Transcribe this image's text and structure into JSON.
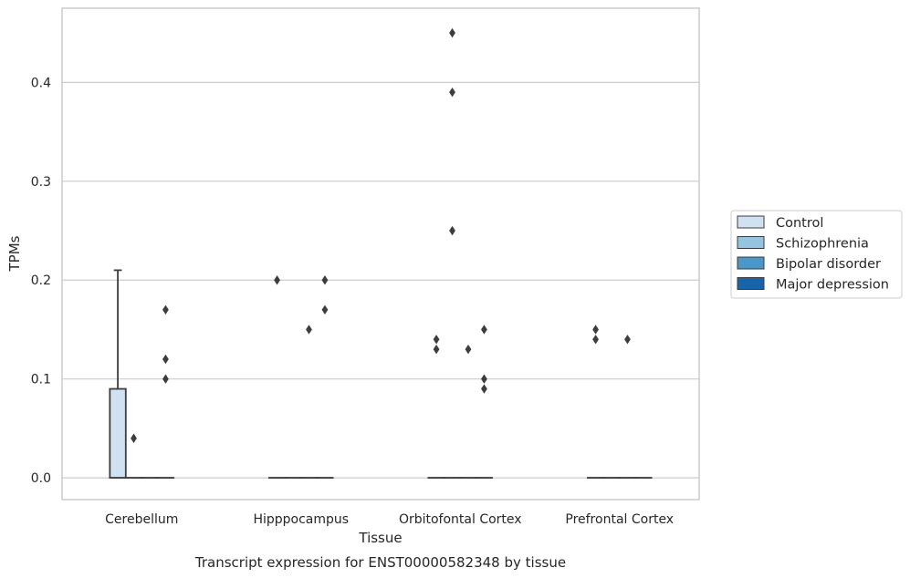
{
  "chart_data": {
    "type": "box",
    "xlabel": "Tissue",
    "ylabel": "TPMs",
    "caption": "Transcript expression for ENST00000582348 by tissue",
    "ylim": [
      -0.022,
      0.475
    ],
    "yticks": [
      0.0,
      0.1,
      0.2,
      0.3,
      0.4
    ],
    "ytick_labels": [
      "0.0",
      "0.1",
      "0.2",
      "0.3",
      "0.4"
    ],
    "grid": true,
    "legend_position": "right",
    "categories": [
      "Cerebellum",
      "Hipppocampus",
      "Orbitofontal Cortex",
      "Prefrontal Cortex"
    ],
    "series": [
      {
        "name": "Control",
        "color": "#d0e1f2",
        "boxes": [
          {
            "q1": 0.0,
            "median": 0.0,
            "q3": 0.09,
            "whisker_low": 0.0,
            "whisker_high": 0.21,
            "outliers": []
          },
          {
            "q1": 0.0,
            "median": 0.0,
            "q3": 0.0,
            "whisker_low": 0.0,
            "whisker_high": 0.0,
            "outliers": [
              0.2
            ]
          },
          {
            "q1": 0.0,
            "median": 0.0,
            "q3": 0.0,
            "whisker_low": 0.0,
            "whisker_high": 0.0,
            "outliers": [
              0.14,
              0.13
            ]
          },
          {
            "q1": 0.0,
            "median": 0.0,
            "q3": 0.0,
            "whisker_low": 0.0,
            "whisker_high": 0.0,
            "outliers": [
              0.15,
              0.14
            ]
          }
        ]
      },
      {
        "name": "Schizophrenia",
        "color": "#94c4df",
        "boxes": [
          {
            "q1": 0.0,
            "median": 0.0,
            "q3": 0.0,
            "whisker_low": 0.0,
            "whisker_high": 0.0,
            "outliers": [
              0.04
            ]
          },
          {
            "q1": 0.0,
            "median": 0.0,
            "q3": 0.0,
            "whisker_low": 0.0,
            "whisker_high": 0.0,
            "outliers": []
          },
          {
            "q1": 0.0,
            "median": 0.0,
            "q3": 0.0,
            "whisker_low": 0.0,
            "whisker_high": 0.0,
            "outliers": [
              0.45,
              0.39,
              0.25
            ]
          },
          {
            "q1": 0.0,
            "median": 0.0,
            "q3": 0.0,
            "whisker_low": 0.0,
            "whisker_high": 0.0,
            "outliers": []
          }
        ]
      },
      {
        "name": "Bipolar disorder",
        "color": "#4a98c9",
        "boxes": [
          {
            "q1": 0.0,
            "median": 0.0,
            "q3": 0.0,
            "whisker_low": 0.0,
            "whisker_high": 0.0,
            "outliers": []
          },
          {
            "q1": 0.0,
            "median": 0.0,
            "q3": 0.0,
            "whisker_low": 0.0,
            "whisker_high": 0.0,
            "outliers": [
              0.15
            ]
          },
          {
            "q1": 0.0,
            "median": 0.0,
            "q3": 0.0,
            "whisker_low": 0.0,
            "whisker_high": 0.0,
            "outliers": [
              0.13
            ]
          },
          {
            "q1": 0.0,
            "median": 0.0,
            "q3": 0.0,
            "whisker_low": 0.0,
            "whisker_high": 0.0,
            "outliers": [
              0.14
            ]
          }
        ]
      },
      {
        "name": "Major depression",
        "color": "#1764ab",
        "boxes": [
          {
            "q1": 0.0,
            "median": 0.0,
            "q3": 0.0,
            "whisker_low": 0.0,
            "whisker_high": 0.0,
            "outliers": [
              0.17,
              0.12,
              0.1
            ]
          },
          {
            "q1": 0.0,
            "median": 0.0,
            "q3": 0.0,
            "whisker_low": 0.0,
            "whisker_high": 0.0,
            "outliers": [
              0.2,
              0.17
            ]
          },
          {
            "q1": 0.0,
            "median": 0.0,
            "q3": 0.0,
            "whisker_low": 0.0,
            "whisker_high": 0.0,
            "outliers": [
              0.15,
              0.1,
              0.09
            ]
          },
          {
            "q1": 0.0,
            "median": 0.0,
            "q3": 0.0,
            "whisker_low": 0.0,
            "whisker_high": 0.0,
            "outliers": []
          }
        ]
      }
    ]
  }
}
